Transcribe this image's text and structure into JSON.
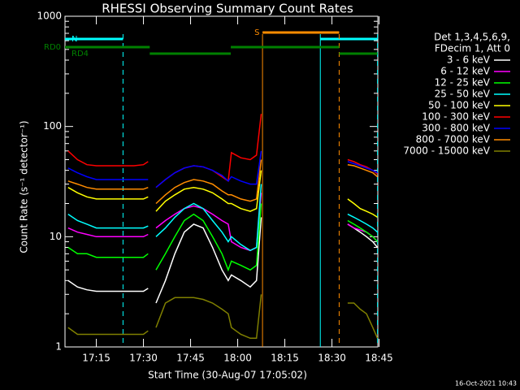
{
  "chart_data": {
    "type": "line",
    "title": "RHESSI Observing Summary Count Rates",
    "xlabel": "Start Time (30-Aug-07 17:05:02)",
    "ylabel": "Count Rate (s⁻¹ detector⁻¹)",
    "log_y": true,
    "ylim": [
      1,
      1000
    ],
    "yticks": [
      1,
      10,
      100,
      1000
    ],
    "xlim": [
      5.03,
      104.6
    ],
    "xticks": [
      {
        "value": 15,
        "label": "17:15"
      },
      {
        "value": 30,
        "label": "17:30"
      },
      {
        "value": 45,
        "label": "17:45"
      },
      {
        "value": 60,
        "label": "18:00"
      },
      {
        "value": 75,
        "label": "18:15"
      },
      {
        "value": 90,
        "label": "18:30"
      },
      {
        "value": 105,
        "label": "18:45"
      }
    ],
    "legend_title": [
      "Det 1,3,4,5,6,9,",
      "FDecim 1, Att 0"
    ],
    "footer": "16-Oct-2021 10:43",
    "x": [
      6,
      9,
      12,
      15,
      18,
      21,
      24,
      27,
      30,
      31.5,
      32.5,
      34,
      37,
      40,
      43,
      46,
      49,
      52,
      55,
      57,
      58,
      61,
      64,
      66,
      67.5,
      80,
      95,
      97,
      99,
      101,
      103,
      104.5
    ],
    "series": [
      {
        "name": "3 - 6 keV",
        "color": "#ffffff",
        "values": [
          4,
          3.5,
          3.3,
          3.2,
          3.2,
          3.2,
          3.2,
          3.2,
          3.2,
          3.4,
          null,
          2.5,
          4,
          7,
          11,
          13,
          12,
          8,
          5,
          4,
          4.5,
          4,
          3.5,
          4,
          15,
          null,
          13,
          12,
          11,
          10,
          9,
          8
        ]
      },
      {
        "name": "6 - 12 keV",
        "color": "#ff00ff",
        "values": [
          12,
          11,
          10.5,
          10,
          10,
          10,
          10,
          10,
          10,
          10.5,
          null,
          12,
          14,
          16,
          18,
          19,
          18,
          16,
          14,
          13,
          9,
          8,
          7.5,
          8,
          25,
          null,
          13,
          12,
          11.5,
          11,
          10,
          9
        ]
      },
      {
        "name": "12 - 25 keV",
        "color": "#00ff00",
        "values": [
          8,
          7,
          7,
          6.5,
          6.5,
          6.5,
          6.5,
          6.5,
          6.5,
          7,
          null,
          5,
          7,
          10,
          14,
          16,
          14,
          10,
          7,
          5,
          6,
          5.5,
          5,
          5.5,
          20,
          null,
          14,
          13,
          12,
          11,
          10,
          9
        ]
      },
      {
        "name": "25 - 50 keV",
        "color": "#00ffff",
        "values": [
          16,
          14,
          13,
          12,
          12,
          12,
          12,
          12,
          12,
          12.5,
          null,
          10,
          12,
          15,
          18,
          20,
          18,
          14,
          11,
          9,
          10,
          8.5,
          7.5,
          8,
          30,
          null,
          16,
          15,
          14,
          13,
          12,
          11
        ]
      },
      {
        "name": "50 - 100 keV",
        "color": "#ffff00",
        "values": [
          28,
          25,
          23,
          22,
          22,
          22,
          22,
          22,
          22,
          23,
          null,
          17,
          21,
          24,
          27,
          28,
          27,
          25,
          22,
          20,
          20,
          18,
          17,
          18,
          40,
          null,
          22,
          20,
          18,
          17,
          16,
          15
        ]
      },
      {
        "name": "100 - 300 keV",
        "color": "#ff0000",
        "values": [
          60,
          50,
          45,
          44,
          44,
          44,
          44,
          44,
          45,
          48,
          null,
          28,
          33,
          38,
          42,
          44,
          43,
          40,
          35,
          32,
          58,
          52,
          50,
          55,
          130,
          null,
          50,
          48,
          45,
          43,
          40,
          37
        ]
      },
      {
        "name": "300 - 800 keV",
        "color": "#0000ff",
        "values": [
          42,
          38,
          35,
          33,
          33,
          33,
          33,
          33,
          33,
          33,
          null,
          28,
          33,
          38,
          42,
          44,
          43,
          40,
          36,
          32,
          35,
          32,
          30,
          30,
          60,
          null,
          48,
          46,
          44,
          42,
          40,
          38
        ]
      },
      {
        "name": "800 - 7000 keV",
        "color": "#ff8c00",
        "values": [
          32,
          30,
          28,
          27,
          27,
          27,
          27,
          27,
          27,
          28,
          null,
          20,
          24,
          28,
          31,
          33,
          32,
          30,
          26,
          24,
          24,
          22,
          21,
          22,
          50,
          null,
          45,
          44,
          42,
          40,
          38,
          35
        ]
      },
      {
        "name": "7000 - 15000 keV",
        "color": "#808000",
        "values": [
          1.5,
          1.3,
          1.3,
          1.3,
          1.3,
          1.3,
          1.3,
          1.3,
          1.3,
          1.4,
          null,
          1.5,
          2.5,
          2.8,
          2.8,
          2.8,
          2.7,
          2.5,
          2.2,
          2,
          1.5,
          1.3,
          1.2,
          1.2,
          3,
          null,
          2.5,
          2.5,
          2.2,
          2,
          1.5,
          1.2
        ]
      }
    ],
    "flags": [
      {
        "label": "N",
        "color": "#00ffff",
        "bars": [
          [
            5.03,
            23.5
          ],
          [
            86.3,
            104.5
          ]
        ],
        "lines": [
          {
            "x": 23.5,
            "dash": true
          },
          {
            "x": 86.3,
            "dash": false
          },
          {
            "x": 104.5,
            "dash": true
          }
        ]
      },
      {
        "label": "S",
        "color": "#ff8c00",
        "bars": [
          [
            67.9,
            92.3
          ]
        ],
        "lines": [
          {
            "x": 67.9,
            "dash": false
          },
          {
            "x": 92.3,
            "dash": true
          }
        ]
      },
      {
        "label": "RD0",
        "color": "#008000",
        "bars": [
          [
            5.03,
            32
          ],
          [
            57.8,
            92.3
          ]
        ],
        "lines": []
      },
      {
        "label": "RD4",
        "color": "#008000",
        "bars": [
          [
            32,
            57.8
          ],
          [
            92.3,
            104.5
          ]
        ],
        "lines": []
      }
    ]
  }
}
